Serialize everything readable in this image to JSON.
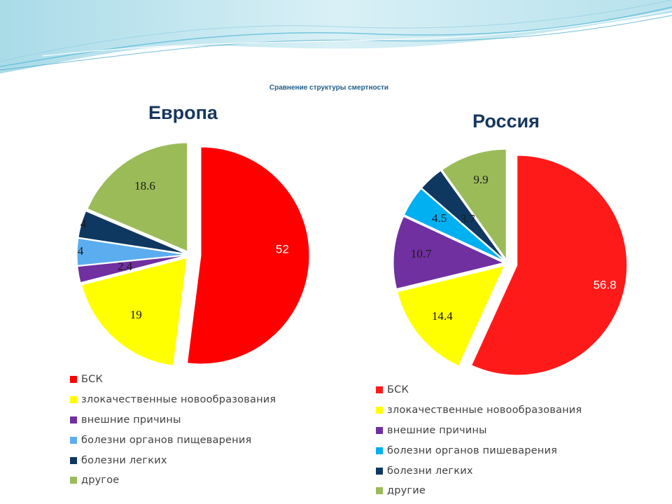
{
  "slide": {
    "title": "Сравнение структуры смертности"
  },
  "chart_data": [
    {
      "type": "pie",
      "title": "Европа",
      "exploded": true,
      "labels": [
        "БСК",
        "злокачественные новообразования",
        "внешние причины",
        "болезни органов пищеварения",
        "болезни легких",
        "другое"
      ],
      "values": [
        52,
        19,
        2.4,
        4,
        4,
        18.6
      ],
      "data_labels": [
        "52",
        "19",
        "2.4",
        "4",
        "4",
        "18.6"
      ],
      "colors": [
        "#ff0000",
        "#ffff00",
        "#7030a0",
        "#5badef",
        "#0f3861",
        "#9bbb59"
      ],
      "legend_position": "bottom"
    },
    {
      "type": "pie",
      "title": "Россия",
      "exploded": true,
      "labels": [
        "БСК",
        "злокачественные новообразования",
        "внешние причины",
        "болезни органов пишеварения",
        "болезни легких",
        "другие"
      ],
      "values": [
        56.8,
        14.4,
        10.7,
        4.5,
        3.7,
        9.9
      ],
      "data_labels": [
        "56.8",
        "14.4",
        "10.7",
        "4.5",
        "3.7",
        "9.9"
      ],
      "colors": [
        "#ff1a1a",
        "#ffff00",
        "#7030a0",
        "#00b0f0",
        "#0f3861",
        "#9bbb59"
      ],
      "legend_position": "bottom"
    }
  ]
}
